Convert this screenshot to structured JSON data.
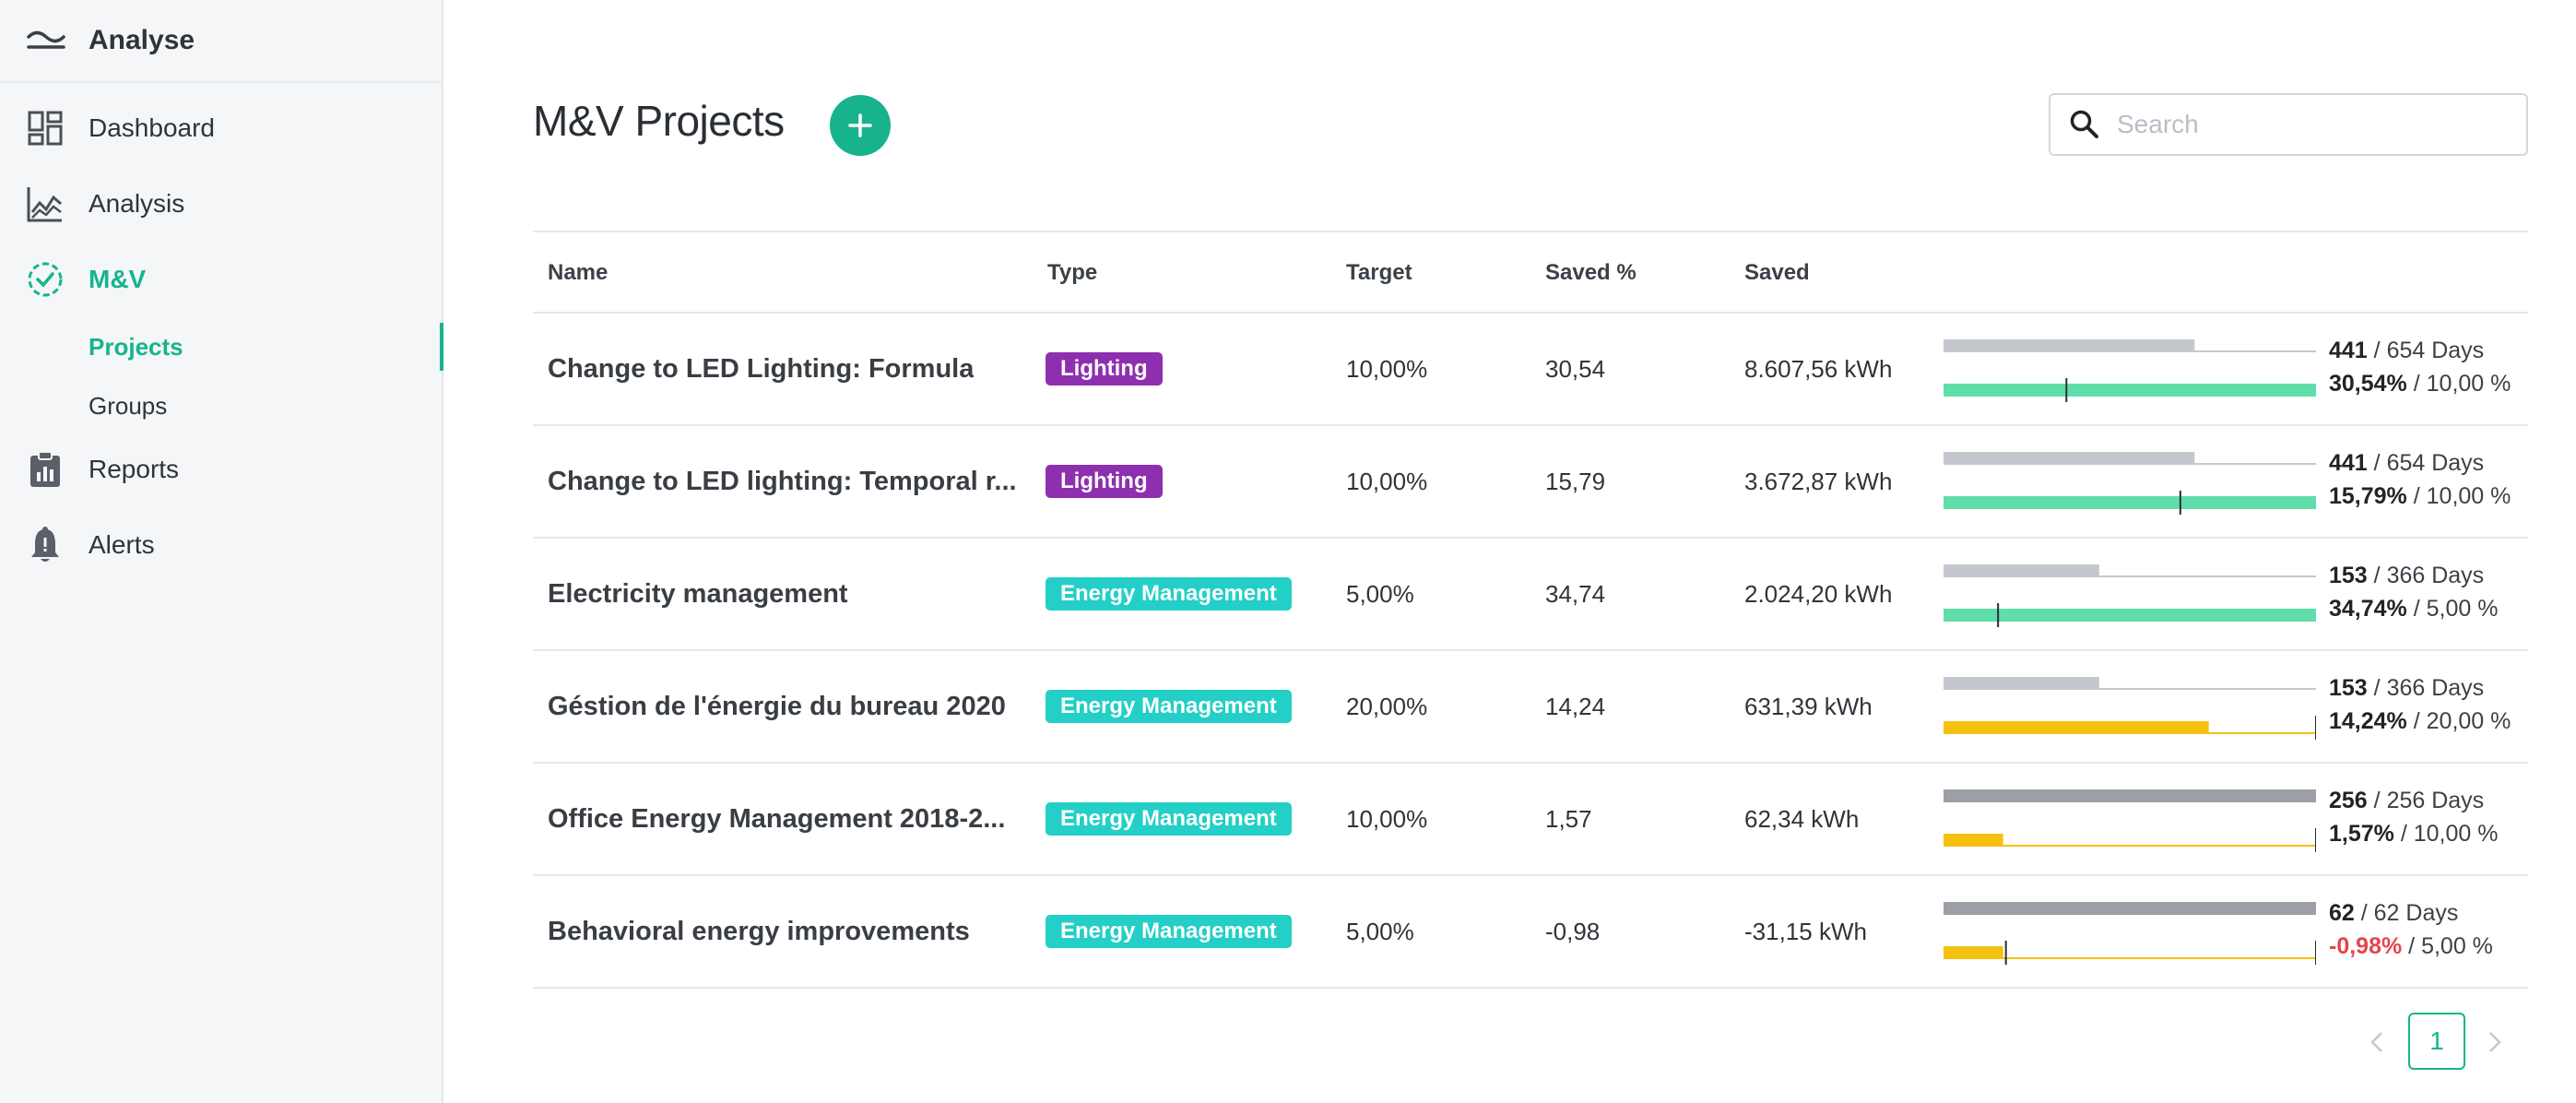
{
  "sidebar": {
    "brand": {
      "name": "Analyse",
      "icon": "analyse-wave-icon"
    },
    "items": [
      {
        "label": "Dashboard",
        "icon": "dashboard-grid-icon",
        "active": false
      },
      {
        "label": "Analysis",
        "icon": "line-chart-icon",
        "active": false
      },
      {
        "label": "M&V",
        "icon": "check-circle-icon",
        "active": true
      },
      {
        "label": "Reports",
        "icon": "clipboard-icon",
        "active": false
      },
      {
        "label": "Alerts",
        "icon": "bell-icon",
        "active": false
      }
    ],
    "sub_items": [
      {
        "label": "Projects",
        "active": true
      },
      {
        "label": "Groups",
        "active": false
      }
    ]
  },
  "header": {
    "title": "M&V Projects",
    "add_icon": "plus-icon",
    "search": {
      "placeholder": "Search",
      "value": ""
    }
  },
  "table": {
    "columns": [
      "Name",
      "Type",
      "Target",
      "Saved %",
      "Saved"
    ],
    "rows": [
      {
        "name": "Change to LED Lighting: Formula",
        "type": "Lighting",
        "target": "10,00%",
        "saved_pct": "30,54",
        "saved": "8.607,56 kWh",
        "days_elapsed": "441",
        "days_total": "654 Days",
        "days_fraction": 0.674,
        "pct_text": "30,54%",
        "target_text": "10,00 %",
        "saved_value": 30.54,
        "target_value": 10.0
      },
      {
        "name": "Change to LED lighting: Temporal r...",
        "type": "Lighting",
        "target": "10,00%",
        "saved_pct": "15,79",
        "saved": "3.672,87 kWh",
        "days_elapsed": "441",
        "days_total": "654 Days",
        "days_fraction": 0.674,
        "pct_text": "15,79%",
        "target_text": "10,00 %",
        "saved_value": 15.79,
        "target_value": 10.0
      },
      {
        "name": "Electricity management",
        "type": "Energy Management",
        "target": "5,00%",
        "saved_pct": "34,74",
        "saved": "2.024,20 kWh",
        "days_elapsed": "153",
        "days_total": "366 Days",
        "days_fraction": 0.418,
        "pct_text": "34,74%",
        "target_text": "5,00 %",
        "saved_value": 34.74,
        "target_value": 5.0
      },
      {
        "name": "Géstion de l'énergie du bureau 2020",
        "type": "Energy Management",
        "target": "20,00%",
        "saved_pct": "14,24",
        "saved": "631,39 kWh",
        "days_elapsed": "153",
        "days_total": "366 Days",
        "days_fraction": 0.418,
        "pct_text": "14,24%",
        "target_text": "20,00 %",
        "saved_value": 14.24,
        "target_value": 20.0
      },
      {
        "name": "Office Energy Management 2018-2...",
        "type": "Energy Management",
        "target": "10,00%",
        "saved_pct": "1,57",
        "saved": "62,34 kWh",
        "days_elapsed": "256",
        "days_total": "256 Days",
        "days_fraction": 1.0,
        "pct_text": "1,57%",
        "target_text": "10,00 %",
        "saved_value": 1.57,
        "target_value": 10.0
      },
      {
        "name": "Behavioral energy improvements",
        "type": "Energy Management",
        "target": "5,00%",
        "saved_pct": "-0,98",
        "saved": "-31,15 kWh",
        "days_elapsed": "62",
        "days_total": "62 Days",
        "days_fraction": 1.0,
        "pct_text": "-0,98%",
        "target_text": "5,00 %",
        "saved_value": -0.98,
        "target_value": 5.0
      }
    ]
  },
  "pagination": {
    "current_page": "1",
    "prev_icon": "chevron-left-icon",
    "next_icon": "chevron-right-icon"
  },
  "colors": {
    "accent": "#17b48e",
    "lighting_badge": "#8e2fb0",
    "energy_badge": "#23cfc6",
    "progress_good": "#5fdeaa",
    "progress_warn": "#f5c10f",
    "time_elapsed": "#c4c8ce",
    "time_complete": "#9ca0a6",
    "negative": "#e5454c"
  }
}
